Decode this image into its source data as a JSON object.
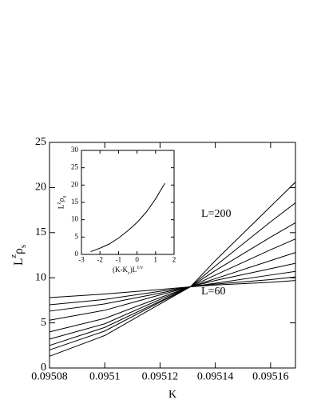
{
  "chart_data": [
    {
      "type": "line",
      "xlabel": "K",
      "ylabel": [
        "L",
        "z",
        "ρ",
        "s"
      ],
      "annotations": [
        "L=200",
        "L=60"
      ],
      "x": [
        0.09508,
        0.0951,
        0.09512,
        0.095131,
        0.09514,
        0.09516,
        0.095169
      ],
      "series": [
        {
          "color": "#000000",
          "values": [
            1.3,
            3.6,
            7.1,
            9,
            11.9,
            17.9,
            20.6
          ]
        },
        {
          "color": "#000000",
          "values": [
            2.0,
            4.1,
            7.3,
            9,
            11.3,
            16.2,
            18.3
          ]
        },
        {
          "color": "#000000",
          "values": [
            2.5,
            4.5,
            7.4,
            9,
            10.8,
            14.5,
            16.1
          ]
        },
        {
          "color": "#000000",
          "values": [
            3.2,
            4.9,
            7.6,
            9,
            10.3,
            13.1,
            14.3
          ]
        },
        {
          "color": "#000000",
          "values": [
            4.0,
            5.5,
            7.8,
            9,
            9.9,
            11.9,
            12.8
          ]
        },
        {
          "color": "#000000",
          "values": [
            5.3,
            6.4,
            8.1,
            9,
            9.7,
            11.0,
            11.6
          ]
        },
        {
          "color": "#000000",
          "values": [
            6.3,
            7.1,
            8.3,
            9,
            9.4,
            10.3,
            10.7
          ]
        },
        {
          "color": "#000000",
          "values": [
            7.0,
            7.6,
            8.5,
            9,
            9.3,
            9.8,
            10.1
          ]
        },
        {
          "color": "#000000",
          "values": [
            7.8,
            8.2,
            8.7,
            9,
            9.2,
            9.5,
            9.7
          ]
        }
      ],
      "xlim": [
        0.09508,
        0.095169
      ],
      "xticks": [
        0.09508,
        0.0951,
        0.09512,
        0.09514,
        0.09516
      ],
      "ylim": [
        0,
        25
      ],
      "yticks": [
        0,
        5,
        10,
        15,
        20,
        25
      ]
    },
    {
      "type": "line",
      "xlabel": [
        "(K-K",
        "c",
        ")L",
        "1/ν"
      ],
      "ylabel": [
        "L",
        "z",
        "ρ",
        "s"
      ],
      "x": [
        -2.5,
        -2,
        -1.5,
        -1,
        -0.5,
        0,
        0.5,
        1,
        1.5
      ],
      "series": [
        {
          "color": "#000000",
          "values": [
            0.8,
            1.8,
            3.0,
            4.7,
            6.8,
            9.2,
            12.2,
            16,
            20.5
          ]
        }
      ],
      "xlim": [
        -3,
        2
      ],
      "xticks": [
        -3,
        -2,
        -1,
        0,
        1,
        2
      ],
      "ylim": [
        0,
        30
      ],
      "yticks": [
        0,
        5,
        10,
        15,
        20,
        25,
        30
      ]
    }
  ]
}
